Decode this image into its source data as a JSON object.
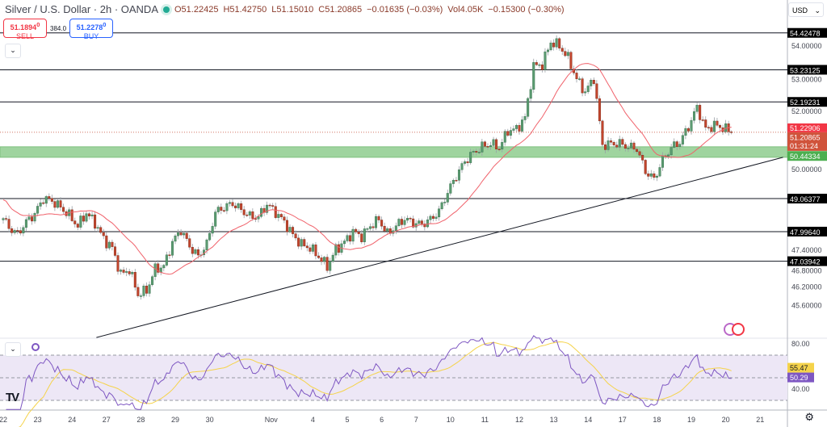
{
  "header": {
    "symbol": "Silver / U.S. Dollar · 2h · OANDA",
    "open": "O51.22425",
    "high": "H51.42750",
    "low": "L51.15010",
    "close": "C51.20865",
    "change": "−0.01635 (−0.03%)",
    "volume": "Vol4.05K",
    "vol_change": "−0.15300 (−0.30%)"
  },
  "trade": {
    "sell_price": "51.1894",
    "sell_sup": "0",
    "sell_label": "SELL",
    "spread": "384.0",
    "buy_price": "51.2278",
    "buy_sup": "0",
    "buy_label": "BUY"
  },
  "currency": "USD",
  "icons": {
    "collapse": "chevron-down-icon",
    "settings": "gear-icon",
    "indicator": "loading-circle-icon",
    "events": "flag-event-icon"
  },
  "colors": {
    "up": "#5b9b71",
    "down": "#c2452d",
    "ma": "#f0626b",
    "rsi": "#7e57c2",
    "rsi_ma": "#f5d34a",
    "zone": "#9fd49f",
    "level": "#131722"
  },
  "chart_data": {
    "type": "candlestick",
    "interval": "2h",
    "path_interval": "6h",
    "path_start": "Oct 22",
    "trading_days": [
      "Oct 22",
      "Oct 23",
      "Oct 24",
      "Oct 27",
      "Oct 28",
      "Oct 29",
      "Oct 30",
      "Oct 31",
      "Nov 3",
      "Nov 4",
      "Nov 5",
      "Nov 6",
      "Nov 7",
      "Nov 10",
      "Nov 11",
      "Nov 12",
      "Nov 13",
      "Nov 14",
      "Nov 17",
      "Nov 18",
      "Nov 19",
      "Nov 20",
      "Nov 21"
    ],
    "x_tick_labels": [
      "22",
      "23",
      "24",
      "27",
      "28",
      "29",
      "30",
      "Nov",
      "4",
      "5",
      "6",
      "7",
      "10",
      "11",
      "12",
      "13",
      "14",
      "17",
      "18",
      "19",
      "20",
      "21"
    ],
    "close_path": [
      48.57,
      48.13,
      47.92,
      48.31,
      48.57,
      49.07,
      48.99,
      48.78,
      48.52,
      48.18,
      48.6,
      48.28,
      47.76,
      47.47,
      46.61,
      46.77,
      45.96,
      46.09,
      46.79,
      46.87,
      47.66,
      48.05,
      47.52,
      47.19,
      47.6,
      48.62,
      48.78,
      48.91,
      48.7,
      48.49,
      48.47,
      48.88,
      48.62,
      48.31,
      47.89,
      47.58,
      47.47,
      47.19,
      46.87,
      47.42,
      47.66,
      47.99,
      47.84,
      48.18,
      48.39,
      47.92,
      48.18,
      48.41,
      48.28,
      48.23,
      48.39,
      48.65,
      49.27,
      49.8,
      50.27,
      50.55,
      50.74,
      50.84,
      50.71,
      51.26,
      51.31,
      51.68,
      53.35,
      53.4,
      54.13,
      54.0,
      53.61,
      52.93,
      52.51,
      52.96,
      50.79,
      50.84,
      50.84,
      50.74,
      50.68,
      49.95,
      49.69,
      50.32,
      50.71,
      50.89,
      51.39,
      52.02,
      51.31,
      51.44,
      51.36,
      51.21
    ],
    "y_ticks": [
      "54.00000",
      "53.00000",
      "52.00000",
      "50.00000",
      "47.40000",
      "46.80000",
      "46.20000",
      "45.60000"
    ],
    "y_range": [
      44.55,
      54.85
    ],
    "levels": [
      "54.42478",
      "53.23125",
      "52.19231",
      "49.06377",
      "47.99640",
      "47.03942"
    ],
    "support_zone": {
      "label": "50.44334",
      "range": [
        50.4,
        50.74
      ]
    },
    "trendline": {
      "start": {
        "date": "Oct 24 17:00",
        "price": 44.57
      },
      "end": {
        "date": "Nov 21 16:00",
        "price": 50.4
      }
    },
    "ask_label": "51.22906",
    "last_price": "51.20865",
    "countdown": "01:31:24",
    "ma_period": 20,
    "rsi": {
      "period": 14,
      "ma_period": 14,
      "upper": 70,
      "middle": 50,
      "lower": 30,
      "range": [
        22,
        90
      ],
      "y_ticks": [
        "80.00",
        "40.00"
      ],
      "value": "50.29",
      "ma_value": "55.47"
    }
  }
}
